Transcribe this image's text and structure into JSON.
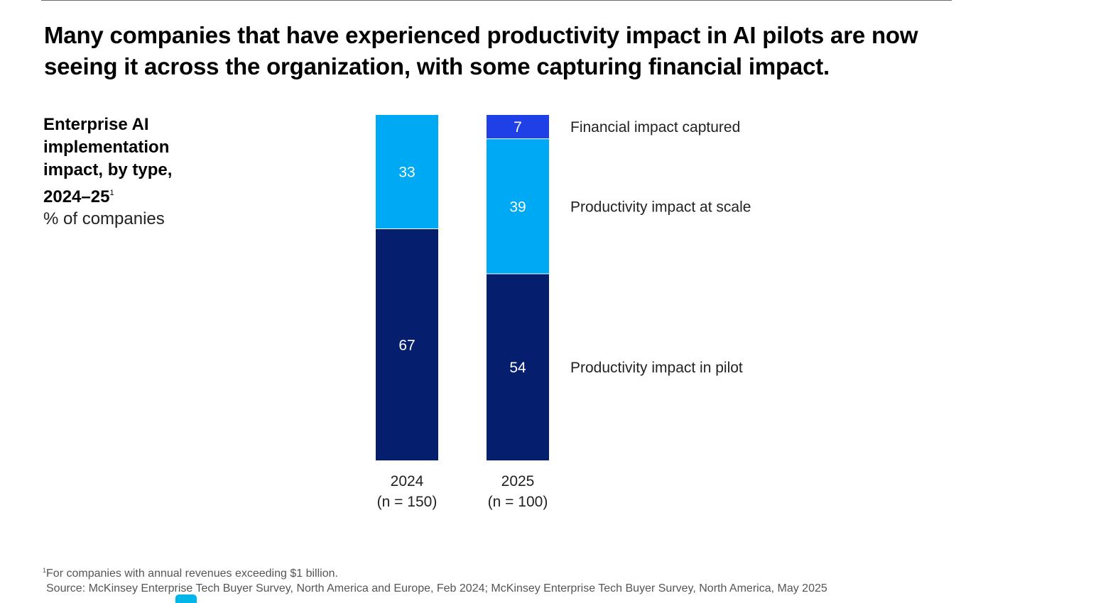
{
  "title": "Many companies that have experienced productivity impact in AI pilots are now seeing it across the organization, with some capturing financial impact.",
  "subtitle": "Enterprise AI implementation impact, by type, 2024–25",
  "subtitle_footnote_marker": "1",
  "units": "% of companies",
  "footnote_marker": "1",
  "footnote": "For companies with annual revenues exceeding $1 billion.",
  "source": "Source: McKinsey Enterprise Tech Buyer Survey, North America and Europe, Feb 2024; McKinsey Enterprise Tech Buyer Survey, North America, May 2025",
  "colors": {
    "pilot": "#051e6e",
    "scale": "#00a9f4",
    "financial": "#1f40e6",
    "accent_tab": "#00b5e8"
  },
  "chart_data": {
    "type": "bar",
    "stacked": true,
    "categories": [
      "2024",
      "2025"
    ],
    "category_sublabels": [
      "(n = 150)",
      "(n = 100)"
    ],
    "series": [
      {
        "name": "Productivity impact in pilot",
        "values": [
          67,
          54
        ],
        "color_key": "pilot"
      },
      {
        "name": "Productivity impact at scale",
        "values": [
          33,
          39
        ],
        "color_key": "scale"
      },
      {
        "name": "Financial impact captured",
        "values": [
          0,
          7
        ],
        "color_key": "financial"
      }
    ],
    "ylim": [
      0,
      100
    ],
    "unit": "% of companies",
    "legend_placement": "right, aligned with 2025 bar segments"
  }
}
